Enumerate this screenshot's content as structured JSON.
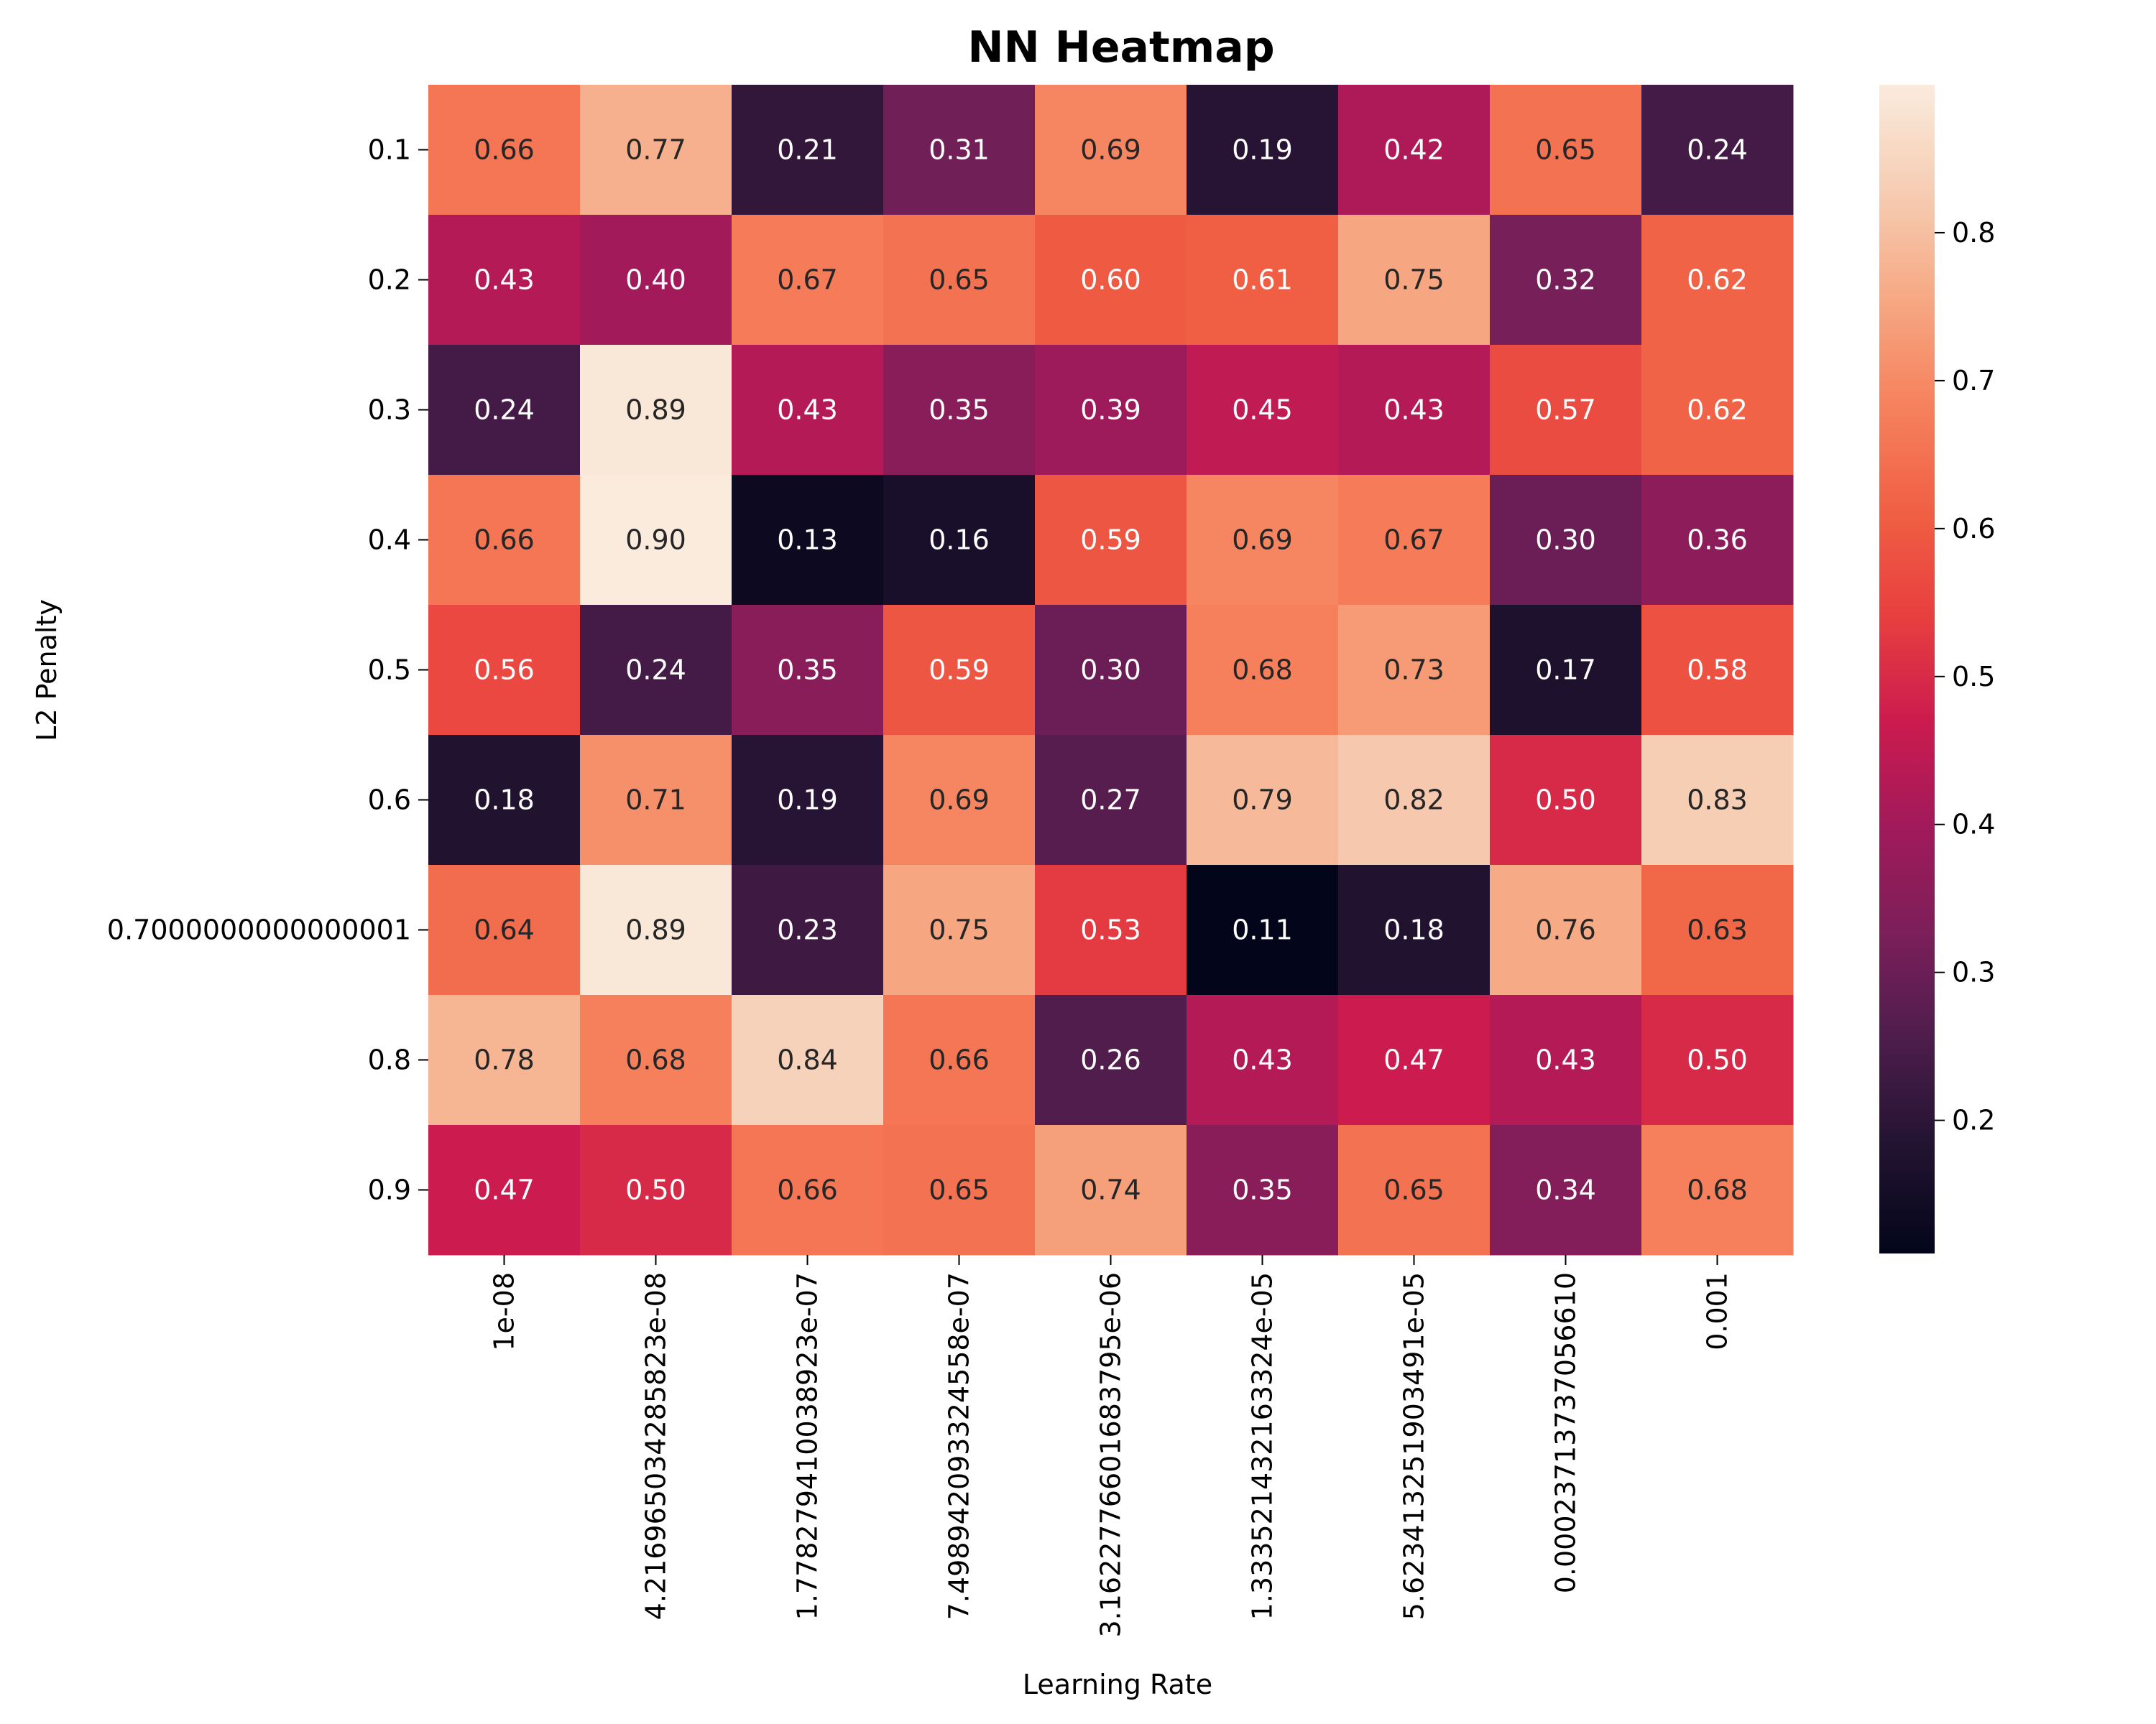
{
  "chart_data": {
    "type": "heatmap",
    "title": "NN Heatmap",
    "xlabel": "Learning Rate",
    "ylabel": "L2 Penalty",
    "x_categories": [
      "1e-08",
      "4.216965034285823e-08",
      "1.778279410038923e-07",
      "7.498942093324558e-07",
      "3.1622776601683795e-06",
      "1.333521432163324e-05",
      "5.623413251903491e-05",
      "0.00023713737056610",
      "0.001"
    ],
    "y_categories": [
      "0.1",
      "0.2",
      "0.3",
      "0.4",
      "0.5",
      "0.6",
      "0.7000000000000001",
      "0.8",
      "0.9"
    ],
    "values": [
      [
        0.66,
        0.77,
        0.21,
        0.31,
        0.69,
        0.19,
        0.42,
        0.65,
        0.24
      ],
      [
        0.43,
        0.4,
        0.67,
        0.65,
        0.6,
        0.61,
        0.75,
        0.32,
        0.62
      ],
      [
        0.24,
        0.89,
        0.43,
        0.35,
        0.39,
        0.45,
        0.43,
        0.57,
        0.62
      ],
      [
        0.66,
        0.9,
        0.13,
        0.16,
        0.59,
        0.69,
        0.67,
        0.3,
        0.36
      ],
      [
        0.56,
        0.24,
        0.35,
        0.59,
        0.3,
        0.68,
        0.73,
        0.17,
        0.58
      ],
      [
        0.18,
        0.71,
        0.19,
        0.69,
        0.27,
        0.79,
        0.82,
        0.5,
        0.83
      ],
      [
        0.64,
        0.89,
        0.23,
        0.75,
        0.53,
        0.11,
        0.18,
        0.76,
        0.63
      ],
      [
        0.78,
        0.68,
        0.84,
        0.66,
        0.26,
        0.43,
        0.47,
        0.43,
        0.5
      ],
      [
        0.47,
        0.5,
        0.66,
        0.65,
        0.74,
        0.35,
        0.65,
        0.34,
        0.68
      ]
    ],
    "colorbar": {
      "min": 0.11,
      "max": 0.9,
      "ticks": [
        "0.2",
        "0.3",
        "0.4",
        "0.5",
        "0.6",
        "0.7",
        "0.8"
      ],
      "colormap": "rocket",
      "colors": [
        "#03051a",
        "#221331",
        "#4c1d4b",
        "#7b1f5a",
        "#a11a5b",
        "#cb1b4f",
        "#e83f3f",
        "#f06043",
        "#f6825e",
        "#f6a984",
        "#f6cdb3",
        "#faebdd"
      ]
    },
    "grid": false,
    "annotated": true
  }
}
